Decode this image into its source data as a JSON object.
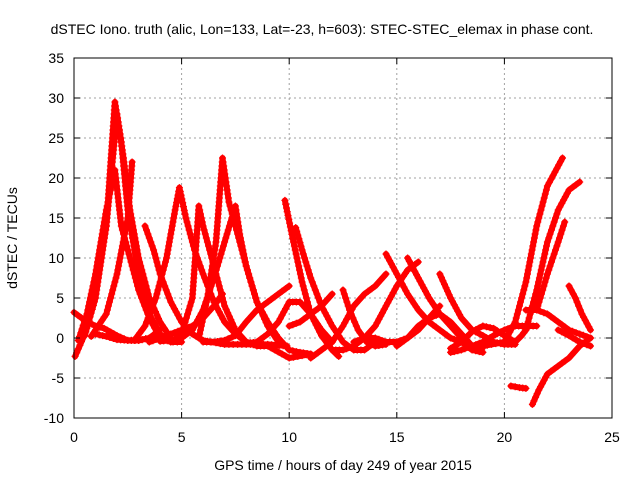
{
  "chart_data": {
    "type": "scatter",
    "title": "dSTEC Iono. truth (alic, Lon=133, Lat=-23, h=603): STEC-STEC_elemax in phase cont.",
    "xlabel": "GPS time / hours of day 249 of year 2015",
    "ylabel": "dSTEC  / TECUs",
    "xlim": [
      0,
      25
    ],
    "ylim": [
      -10,
      35
    ],
    "x_ticks": [
      "0",
      "5",
      "10",
      "15",
      "20",
      "25"
    ],
    "y_ticks": [
      "-10",
      "-5",
      "0",
      "5",
      "10",
      "15",
      "20",
      "25",
      "30",
      "35"
    ],
    "grid": true,
    "color": "#ff0000",
    "marker": "plus",
    "series": [
      {
        "values": [
          [
            0.0,
            3.2
          ],
          [
            0.5,
            2.2
          ],
          [
            1.0,
            1.5
          ],
          [
            1.4,
            1.2
          ],
          [
            2.0,
            0.3
          ],
          [
            2.5,
            -0.3
          ],
          [
            3.0,
            -0.3
          ],
          [
            3.5,
            0.0
          ]
        ]
      },
      {
        "values": [
          [
            0.05,
            -2.3
          ],
          [
            0.5,
            0.5
          ],
          [
            1.0,
            6.0
          ],
          [
            1.5,
            14.0
          ],
          [
            1.9,
            29.5
          ],
          [
            2.2,
            24.5
          ],
          [
            2.5,
            16.0
          ],
          [
            3.0,
            8.0
          ],
          [
            3.5,
            3.0
          ],
          [
            4.0,
            0.5
          ],
          [
            4.5,
            -0.5
          ]
        ]
      },
      {
        "values": [
          [
            0.2,
            -0.3
          ],
          [
            0.6,
            3.0
          ],
          [
            1.0,
            8.0
          ],
          [
            1.5,
            16.0
          ],
          [
            1.9,
            21.0
          ],
          [
            2.2,
            14.0
          ],
          [
            2.6,
            10.0
          ],
          [
            3.0,
            6.0
          ],
          [
            3.5,
            2.5
          ],
          [
            4.0,
            0.0
          ],
          [
            4.6,
            -0.5
          ],
          [
            5.0,
            -0.5
          ]
        ]
      },
      {
        "values": [
          [
            0.5,
            0.3
          ],
          [
            1.0,
            5.0
          ],
          [
            1.5,
            14.0
          ],
          [
            2.0,
            28.0
          ],
          [
            2.3,
            22.5
          ],
          [
            2.6,
            16.0
          ],
          [
            3.0,
            10.0
          ],
          [
            3.5,
            5.0
          ],
          [
            4.0,
            2.0
          ],
          [
            4.5,
            0.0
          ]
        ]
      },
      {
        "values": [
          [
            0.8,
            0.2
          ],
          [
            1.5,
            3.0
          ],
          [
            2.0,
            8.0
          ],
          [
            2.5,
            15.0
          ],
          [
            2.7,
            22.0
          ]
        ]
      },
      {
        "values": [
          [
            1.0,
            0.5
          ],
          [
            1.5,
            0.2
          ],
          [
            2.0,
            -0.2
          ],
          [
            2.5,
            -0.3
          ],
          [
            3.0,
            -0.3
          ],
          [
            3.5,
            0.0
          ],
          [
            4.0,
            1.0
          ]
        ]
      },
      {
        "values": [
          [
            3.3,
            14.0
          ],
          [
            3.7,
            11.0
          ],
          [
            4.0,
            8.0
          ],
          [
            4.5,
            4.5
          ],
          [
            5.0,
            2.0
          ],
          [
            5.5,
            0.5
          ],
          [
            6.0,
            -0.3
          ],
          [
            7.0,
            -0.8
          ],
          [
            8.0,
            -0.8
          ],
          [
            9.0,
            -0.8
          ],
          [
            9.9,
            -1.0
          ]
        ]
      },
      {
        "values": [
          [
            2.8,
            -0.3
          ],
          [
            3.3,
            1.5
          ],
          [
            3.8,
            5.0
          ],
          [
            4.3,
            10.0
          ],
          [
            4.7,
            16.0
          ],
          [
            4.9,
            18.8
          ],
          [
            5.2,
            15.0
          ],
          [
            5.6,
            11.0
          ],
          [
            6.0,
            8.0
          ],
          [
            6.5,
            4.5
          ],
          [
            7.0,
            2.0
          ],
          [
            7.5,
            0.5
          ],
          [
            8.0,
            -0.5
          ],
          [
            9.0,
            -1.0
          ],
          [
            10.0,
            -2.5
          ],
          [
            11.0,
            -2.0
          ]
        ]
      },
      {
        "values": [
          [
            3.5,
            -0.5
          ],
          [
            4.0,
            0.0
          ],
          [
            4.5,
            0.5
          ],
          [
            5.0,
            1.0
          ],
          [
            5.5,
            1.5
          ],
          [
            6.0,
            2.5
          ],
          [
            6.5,
            4.0
          ],
          [
            6.9,
            5.5
          ]
        ]
      },
      {
        "values": [
          [
            4.0,
            -0.4
          ],
          [
            4.5,
            -0.3
          ],
          [
            5.0,
            0.0
          ],
          [
            5.5,
            1.0
          ],
          [
            6.0,
            3.5
          ],
          [
            6.5,
            7.5
          ],
          [
            7.0,
            12.0
          ],
          [
            7.5,
            16.5
          ],
          [
            7.7,
            13.0
          ],
          [
            8.0,
            9.0
          ],
          [
            8.5,
            4.5
          ],
          [
            9.0,
            1.5
          ],
          [
            9.5,
            -0.5
          ]
        ]
      },
      {
        "values": [
          [
            4.5,
            -0.5
          ],
          [
            5.0,
            0.5
          ],
          [
            5.5,
            5.0
          ],
          [
            5.8,
            16.5
          ],
          [
            6.0,
            14.0
          ],
          [
            6.5,
            9.0
          ],
          [
            7.0,
            4.0
          ],
          [
            7.5,
            1.0
          ],
          [
            8.0,
            -0.5
          ],
          [
            8.5,
            -1.0
          ],
          [
            9.0,
            -1.0
          ]
        ]
      },
      {
        "values": [
          [
            5.8,
            0.0
          ],
          [
            6.2,
            5.0
          ],
          [
            6.6,
            12.0
          ],
          [
            6.9,
            22.5
          ],
          [
            7.2,
            17.0
          ],
          [
            7.6,
            13.0
          ],
          [
            8.0,
            9.0
          ],
          [
            8.5,
            4.5
          ],
          [
            9.0,
            2.0
          ],
          [
            9.5,
            0.0
          ],
          [
            10.0,
            -1.5
          ],
          [
            10.5,
            -1.8
          ],
          [
            11.0,
            -2.0
          ]
        ]
      },
      {
        "values": [
          [
            6.0,
            -0.5
          ],
          [
            6.5,
            -0.5
          ],
          [
            7.0,
            -0.3
          ],
          [
            7.5,
            0.3
          ],
          [
            8.0,
            2.0
          ],
          [
            8.5,
            3.5
          ],
          [
            9.0,
            4.5
          ],
          [
            9.5,
            5.5
          ],
          [
            10.0,
            6.5
          ]
        ]
      },
      {
        "values": [
          [
            8.0,
            -0.7
          ],
          [
            8.5,
            -0.5
          ],
          [
            9.0,
            0.5
          ],
          [
            9.5,
            2.0
          ],
          [
            10.0,
            4.5
          ],
          [
            10.5,
            4.5
          ],
          [
            11.0,
            3.0
          ],
          [
            11.5,
            1.0
          ],
          [
            12.0,
            -0.5
          ]
        ]
      },
      {
        "values": [
          [
            9.8,
            17.2
          ],
          [
            10.2,
            12.0
          ],
          [
            10.6,
            7.0
          ],
          [
            11.0,
            3.0
          ],
          [
            11.5,
            0.3
          ],
          [
            12.0,
            -1.5
          ],
          [
            12.3,
            -2.3
          ]
        ]
      },
      {
        "values": [
          [
            10.3,
            13.8
          ],
          [
            10.6,
            11.0
          ],
          [
            11.0,
            7.5
          ],
          [
            11.5,
            4.0
          ],
          [
            12.0,
            1.5
          ],
          [
            12.5,
            -0.5
          ],
          [
            13.0,
            -1.5
          ],
          [
            13.5,
            -1.5
          ],
          [
            14.0,
            -0.5
          ]
        ]
      },
      {
        "values": [
          [
            10.0,
            1.5
          ],
          [
            10.5,
            2.0
          ],
          [
            11.0,
            3.0
          ],
          [
            11.5,
            4.0
          ],
          [
            12.0,
            5.5
          ]
        ]
      },
      {
        "values": [
          [
            11.0,
            -2.5
          ],
          [
            11.5,
            -1.5
          ],
          [
            12.0,
            -0.5
          ],
          [
            12.5,
            1.5
          ],
          [
            13.0,
            4.0
          ],
          [
            13.5,
            5.5
          ],
          [
            14.0,
            6.5
          ],
          [
            14.5,
            8.0
          ]
        ]
      },
      {
        "values": [
          [
            12.0,
            -1.5
          ],
          [
            12.5,
            -1.5
          ],
          [
            13.0,
            -1.0
          ],
          [
            13.5,
            0.0
          ],
          [
            14.0,
            0.0
          ],
          [
            14.5,
            -0.5
          ],
          [
            15.0,
            -0.5
          ],
          [
            15.5,
            0.0
          ],
          [
            16.0,
            1.0
          ],
          [
            16.5,
            2.5
          ],
          [
            17.0,
            4.0
          ]
        ]
      },
      {
        "values": [
          [
            12.5,
            6.0
          ],
          [
            12.8,
            3.5
          ],
          [
            13.2,
            1.0
          ],
          [
            13.6,
            -0.5
          ],
          [
            14.0,
            -1.0
          ],
          [
            14.5,
            -0.8
          ]
        ]
      },
      {
        "values": [
          [
            13.0,
            -0.5
          ],
          [
            13.5,
            0.0
          ],
          [
            14.0,
            1.5
          ],
          [
            14.5,
            4.0
          ],
          [
            15.0,
            6.5
          ],
          [
            15.5,
            8.5
          ],
          [
            16.0,
            9.5
          ]
        ]
      },
      {
        "values": [
          [
            14.5,
            10.5
          ],
          [
            15.0,
            8.0
          ],
          [
            15.5,
            5.5
          ],
          [
            16.0,
            3.5
          ],
          [
            16.5,
            2.0
          ],
          [
            17.0,
            1.0
          ],
          [
            17.5,
            0.0
          ],
          [
            18.0,
            -0.5
          ],
          [
            18.5,
            -1.5
          ],
          [
            19.0,
            -1.8
          ]
        ]
      },
      {
        "values": [
          [
            15.5,
            10.0
          ],
          [
            16.0,
            7.5
          ],
          [
            16.5,
            5.0
          ],
          [
            17.0,
            3.0
          ],
          [
            17.5,
            1.5
          ],
          [
            18.0,
            0.0
          ],
          [
            18.5,
            -1.0
          ],
          [
            19.0,
            -1.2
          ]
        ]
      },
      {
        "values": [
          [
            17.0,
            8.0
          ],
          [
            17.5,
            5.0
          ],
          [
            18.0,
            2.5
          ],
          [
            18.5,
            1.0
          ],
          [
            19.0,
            0.3
          ],
          [
            19.5,
            -0.5
          ],
          [
            20.0,
            -0.8
          ],
          [
            20.5,
            -0.8
          ]
        ]
      },
      {
        "values": [
          [
            15.0,
            -1.0
          ],
          [
            15.5,
            0.0
          ],
          [
            16.0,
            1.5
          ],
          [
            16.5,
            2.5
          ],
          [
            17.0,
            3.0
          ],
          [
            17.5,
            2.0
          ],
          [
            18.0,
            0.5
          ],
          [
            18.5,
            -1.0
          ],
          [
            19.0,
            -1.0
          ],
          [
            20.0,
            -0.5
          ]
        ]
      },
      {
        "values": [
          [
            17.5,
            -1.3
          ],
          [
            18.0,
            -0.5
          ],
          [
            18.5,
            0.8
          ],
          [
            19.0,
            1.5
          ],
          [
            19.5,
            1.2
          ],
          [
            20.0,
            0.3
          ],
          [
            20.5,
            -0.5
          ]
        ]
      },
      {
        "values": [
          [
            17.5,
            -1.8
          ],
          [
            18.0,
            -1.5
          ],
          [
            18.5,
            -1.0
          ],
          [
            19.0,
            -0.5
          ],
          [
            19.5,
            0.3
          ],
          [
            20.0,
            1.0
          ],
          [
            20.5,
            1.5
          ],
          [
            21.0,
            1.5
          ],
          [
            21.5,
            1.5
          ]
        ]
      },
      {
        "values": [
          [
            20.3,
            -6.0
          ],
          [
            20.7,
            -6.2
          ],
          [
            21.0,
            -6.3
          ]
        ]
      },
      {
        "values": [
          [
            20.0,
            -0.5
          ],
          [
            20.5,
            2.0
          ],
          [
            21.0,
            7.0
          ],
          [
            21.5,
            14.0
          ],
          [
            22.0,
            19.0
          ],
          [
            22.7,
            22.5
          ]
        ]
      },
      {
        "values": [
          [
            21.0,
            1.0
          ],
          [
            21.5,
            6.0
          ],
          [
            22.0,
            12.0
          ],
          [
            22.5,
            16.0
          ],
          [
            23.0,
            18.5
          ],
          [
            23.5,
            19.5
          ]
        ]
      },
      {
        "values": [
          [
            21.5,
            3.5
          ],
          [
            22.0,
            8.0
          ],
          [
            22.5,
            12.0
          ],
          [
            22.8,
            14.5
          ]
        ]
      },
      {
        "values": [
          [
            21.3,
            -8.3
          ],
          [
            21.6,
            -6.5
          ],
          [
            22.0,
            -4.5
          ],
          [
            22.5,
            -3.5
          ],
          [
            23.0,
            -2.5
          ],
          [
            23.5,
            -1.0
          ],
          [
            24.0,
            0.0
          ]
        ]
      },
      {
        "values": [
          [
            21.0,
            3.5
          ],
          [
            21.5,
            3.5
          ],
          [
            22.0,
            3.0
          ],
          [
            22.5,
            2.0
          ],
          [
            23.0,
            1.0
          ],
          [
            23.5,
            0.5
          ],
          [
            24.0,
            0.0
          ]
        ]
      },
      {
        "values": [
          [
            22.5,
            1.0
          ],
          [
            23.0,
            0.3
          ],
          [
            23.5,
            -0.5
          ],
          [
            24.0,
            -1.0
          ]
        ]
      },
      {
        "values": [
          [
            23.0,
            6.5
          ],
          [
            23.3,
            5.0
          ],
          [
            23.6,
            3.0
          ],
          [
            24.0,
            1.0
          ]
        ]
      },
      {
        "values": [
          [
            20.5,
            -0.5
          ],
          [
            20.8,
            0.3
          ],
          [
            21.0,
            1.0
          ]
        ]
      }
    ]
  }
}
